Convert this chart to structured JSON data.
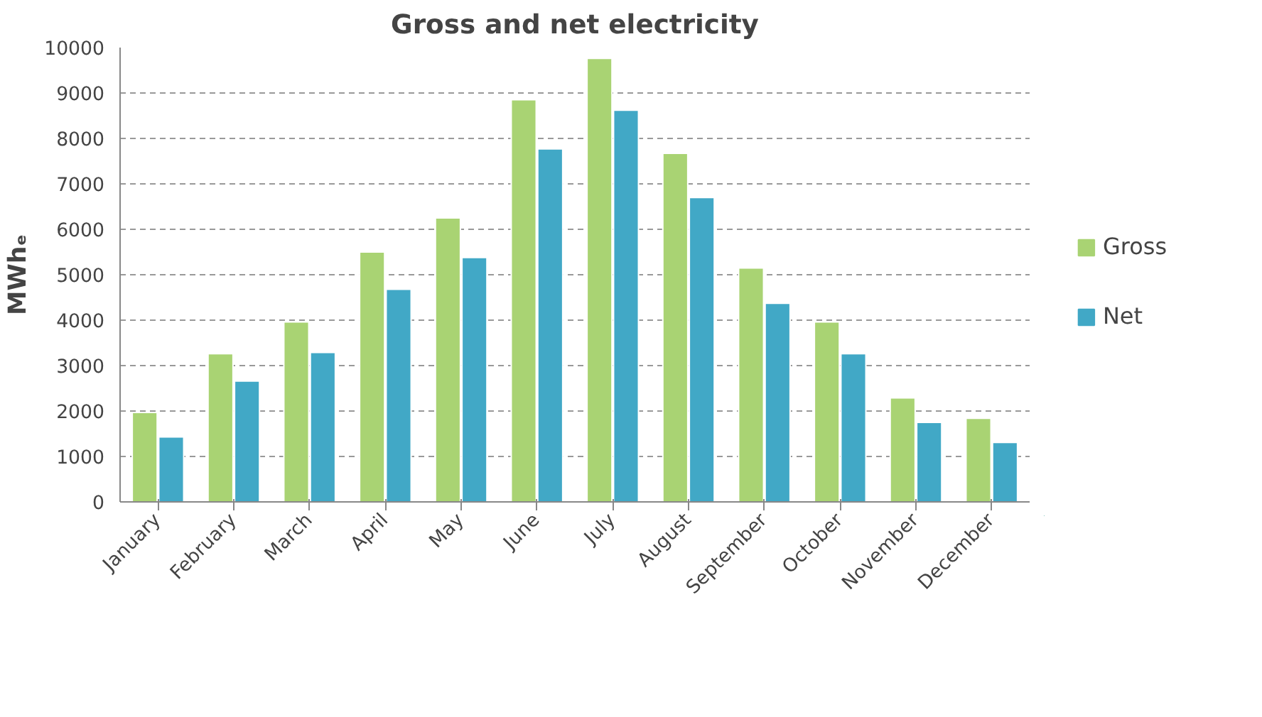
{
  "chart_data": {
    "type": "bar",
    "title": "Gross and net electricity",
    "ylabel": "MWhₑ",
    "categories": [
      "January",
      "February",
      "March",
      "April",
      "May",
      "June",
      "July",
      "August",
      "September",
      "October",
      "November",
      "December"
    ],
    "series": [
      {
        "name": "Gross",
        "color": "#a9d373",
        "values": [
          1970,
          3260,
          3960,
          5500,
          6250,
          8850,
          9760,
          7670,
          5150,
          3960,
          2290,
          1840
        ]
      },
      {
        "name": "Net",
        "color": "#41a8c6",
        "values": [
          1430,
          2660,
          3290,
          4680,
          5380,
          7770,
          8620,
          6700,
          4370,
          3260,
          1750,
          1310
        ]
      }
    ],
    "ylim": [
      0,
      10000
    ],
    "yticks": [
      0,
      1000,
      2000,
      3000,
      4000,
      5000,
      6000,
      7000,
      8000,
      9000,
      10000
    ],
    "grid": "y",
    "legend": "right"
  }
}
